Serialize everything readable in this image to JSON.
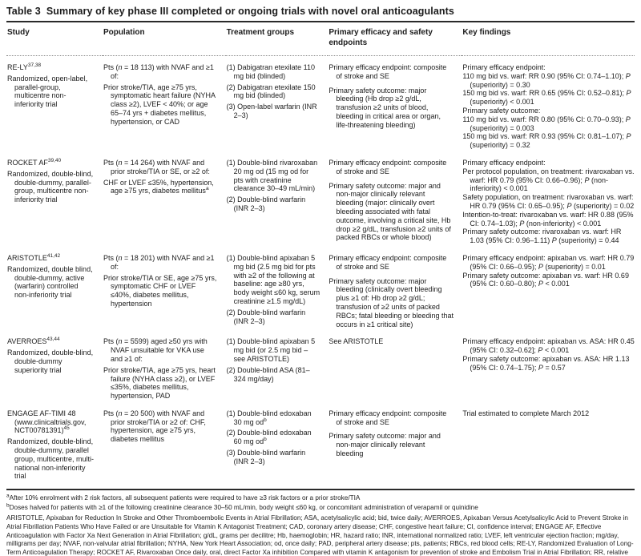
{
  "title": {
    "label": "Table 3",
    "text": "Summary of key phase III completed or ongoing trials with novel oral anticoagulants"
  },
  "table": {
    "columns": [
      "Study",
      "Population",
      "Treatment groups",
      "Primary efficacy and safety endpoints",
      "Key findings"
    ],
    "rows": [
      {
        "study": [
          {
            "text": "RE-LY",
            "sup": "37,38"
          },
          {
            "text": "Randomized, open-label, parallel-group, multicentre non-inferiority trial",
            "gap": true
          }
        ],
        "population": [
          {
            "text": "Pts (n = 18 113) with NVAF and ≥1 of:"
          },
          {
            "text": "Prior stroke/TIA, age ≥75 yrs, symptomatic heart failure (NYHA class ≥2), LVEF < 40%; or age 65–74 yrs + diabetes mellitus, hypertension, or CAD"
          }
        ],
        "treatment": [
          {
            "text": "(1) Dabigatran etexilate 110 mg bid (blinded)"
          },
          {
            "text": "(2) Dabigatran etexilate 150 mg bid (blinded)"
          },
          {
            "text": "(3) Open-label warfarin (INR 2–3)"
          }
        ],
        "endpoints": [
          {
            "text": "Primary efficacy endpoint: composite of stroke and SE"
          },
          {
            "text": "Primary safety outcome: major bleeding (Hb drop ≥2 g/dL, transfusion ≥2 units of blood, bleeding in critical area or organ, life-threatening bleeding)",
            "gap": true
          }
        ],
        "findings": [
          {
            "text": "Primary efficacy endpoint:"
          },
          {
            "text": "110 mg bid vs. warf: RR 0.90 (95% CI: 0.74–1.10); P (superiority) = 0.30"
          },
          {
            "text": "150 mg bid vs. warf: RR 0.65 (95% CI: 0.52–0.81); P (superiority) < 0.001"
          },
          {
            "text": "Primary safety outcome:"
          },
          {
            "text": "110 mg bid vs. warf: RR 0.80 (95% CI: 0.70–0.93); P (superiority) = 0.003"
          },
          {
            "text": "150 mg bid vs. warf: RR 0.93 (95% CI: 0.81–1.07); P (superiority) = 0.32"
          }
        ]
      },
      {
        "study": [
          {
            "text": "ROCKET AF",
            "sup": "39,40"
          },
          {
            "text": "Randomized, double-blind, double-dummy, parallel-group, multicentre non-inferiority trial"
          }
        ],
        "population": [
          {
            "text": "Pts (n = 14 264) with NVAF and prior stroke/TIA or SE, or ≥2 of:"
          },
          {
            "text": "CHF or LVEF ≤35%, hypertension, age ≥75 yrs, diabetes mellitus",
            "sup": "a"
          }
        ],
        "treatment": [
          {
            "text": "(1) Double-blind rivaroxaban 20 mg od (15 mg od for pts with creatinine clearance 30–49 mL/min)"
          },
          {
            "text": "(2) Double-blind warfarin (INR 2–3)"
          }
        ],
        "endpoints": [
          {
            "text": "Primary efficacy endpoint: composite of stroke and SE"
          },
          {
            "text": "Primary safety outcome: major and non-major clinically relevant bleeding (major: clinically overt bleeding associated with fatal outcome, involving a critical site, Hb drop ≥2 g/dL, transfusion ≥2 units of packed RBCs or whole blood)",
            "gap": true
          }
        ],
        "findings": [
          {
            "text": "Primary efficacy endpoint:"
          },
          {
            "text": "Per protocol population, on treatment: rivaroxaban vs. warf: HR 0.79 (95% CI: 0.66–0.96); P (non-inferiority) < 0.001"
          },
          {
            "text": "Safety population, on treatment: rivaroxaban vs. warf: HR 0.79 (95% CI: 0.65–0.95); P (superiority) = 0.02"
          },
          {
            "text": "Intention-to-treat: rivaroxaban vs. warf: HR 0.88 (95% CI: 0.74–1.03); P (non-inferiority) < 0.001"
          },
          {
            "text": "Primary safety outcome: rivaroxaban vs. warf: HR 1.03 (95% CI: 0.96–1.11) P (superiority) = 0.44"
          }
        ]
      },
      {
        "study": [
          {
            "text": "ARISTOTLE",
            "sup": "41,42"
          },
          {
            "text": "Randomized, double blind, double-dummy, active (warfarin) controlled non-inferiority trial"
          }
        ],
        "population": [
          {
            "text": "Pts (n = 18 201) with NVAF and ≥1 of:"
          },
          {
            "text": "Prior stroke/TIA or SE, age ≥75 yrs, symptomatic CHF or LVEF ≤40%, diabetes mellitus, hypertension"
          }
        ],
        "treatment": [
          {
            "text": "(1) Double-blind apixaban 5 mg bid (2.5 mg bid for pts with ≥2 of the following at baseline: age ≥80 yrs, body weight ≤60 kg, serum creatinine ≥1.5 mg/dL)"
          },
          {
            "text": "(2) Double-blind warfarin (INR 2–3)"
          }
        ],
        "endpoints": [
          {
            "text": "Primary efficacy endpoint: composite of stroke and SE"
          },
          {
            "text": "Primary safety outcome: major bleeding (clinically overt bleeding plus ≥1 of: Hb drop ≥2 g/dL; transfusion of ≥2 units of packed RBCs; fatal bleeding or bleeding that occurs in ≥1 critical site)",
            "gap": true
          }
        ],
        "findings": [
          {
            "text": "Primary efficacy endpoint: apixaban vs. warf: HR 0.79 (95% CI: 0.66–0.95); P (superiority) = 0.01"
          },
          {
            "text": "Primary safety outcome: apixaban vs. warf: HR 0.69 (95% CI: 0.60–0.80); P < 0.001"
          }
        ]
      },
      {
        "study": [
          {
            "text": "AVERROES",
            "sup": "43,44"
          },
          {
            "text": "Randomized, double-blind, double-dummy superiority trial"
          }
        ],
        "population": [
          {
            "text": "Pts (n = 5599) aged ≥50 yrs with NVAF unsuitable for VKA use and ≥1 of:"
          },
          {
            "text": "Prior stroke/TIA, age ≥75 yrs, heart failure (NYHA class ≥2), or LVEF ≤35%, diabetes mellitus, hypertension, PAD"
          }
        ],
        "treatment": [
          {
            "text": "(1) Double-blind apixaban 5 mg bid (or 2.5 mg bid – see ARISTOTLE)"
          },
          {
            "text": "(2) Double-blind ASA (81–324 mg/day)"
          }
        ],
        "endpoints": [
          {
            "text": "See ARISTOTLE"
          }
        ],
        "findings": [
          {
            "text": "Primary efficacy endpoint: apixaban vs. ASA: HR 0.45 (95% CI: 0.32–0.62]; P < 0.001"
          },
          {
            "text": "Primary safety outcome: apixaban vs. ASA: HR 1.13 (95% CI: 0.74–1.75); P = 0.57"
          }
        ]
      },
      {
        "study": [
          {
            "text": "ENGAGE AF-TIMI 48 (www.clinicaltrials.gov, NCT00781391)",
            "sup": "45"
          },
          {
            "text": "Randomized, double-blind, double-dummy, parallel group, multicentre, multi-national non-inferiority trial",
            "gap": true
          }
        ],
        "population": [
          {
            "text": "Pts (n = 20 500) with NVAF and prior stroke/TIA or ≥2 of: CHF, hypertension, age ≥75 yrs, diabetes mellitus"
          }
        ],
        "treatment": [
          {
            "text": "(1) Double-blind edoxaban 30 mg od",
            "sup": "b"
          },
          {
            "text": "(2) Double-blind edoxaban 60 mg od",
            "sup": "b"
          },
          {
            "text": "(3) Double-blind warfarin (INR 2–3)"
          }
        ],
        "endpoints": [
          {
            "text": "Primary efficacy endpoint: composite of stroke and SE"
          },
          {
            "text": "Primary safety outcome: major and non-major clinically relevant bleeding",
            "gap": true
          }
        ],
        "findings": [
          {
            "text": "Trial estimated to complete March 2012"
          }
        ]
      }
    ]
  },
  "footnotes": [
    {
      "sup": "a",
      "text": "After 10% enrolment with 2 risk factors, all subsequent patients were required to have ≥3 risk factors or a prior stroke/TIA"
    },
    {
      "sup": "b",
      "text": "Doses halved for patients with ≥1 of the following creatinine clearance 30–50 mL/min, body weight ≤60 kg, or concomitant administration of verapamil or quinidine"
    },
    {
      "abbr": true,
      "text": "ARISTOTLE, Apixaban for Reduction In Stroke and Other Thromboembolic Events in Atrial Fibrillation; ASA, acetylsalicylic acid; bid, twice daily; AVERROES, Apixaban Versus Acetylsalicylic Acid to Prevent Stroke in Atrial Fibrillation Patients Who Have Failed or are Unsuitable for Vitamin K Antagonist Treatment; CAD, coronary artery disease; CHF, congestive heart failure; CI, confidence interval; ENGAGE AF, Effective Anticoagulation with Factor Xa Next Generation in Atrial Fibrillation; g/dL, grams per decilitre; Hb, haemoglobin; HR, hazard ratio; INR, international normalized ratio; LVEF, left ventricular ejection fraction; mg/day, milligrams per day; NVAF, non-valvular atrial fibrillation; NYHA, New York Heart Association; od, once daily; PAD, peripheral artery disease; pts, patients; RBCs, red blood cells; RE-LY, Randomized Evaluation of Long-Term Anticoagulation Therapy; ROCKET AF, Rivaroxaban Once daily, oral, direct Factor Xa inhibition Compared with vitamin K antagonism for prevention of stroke and Embolism Trial in Atrial Fibrillation; RR, relative risk; SE, systemic embolism; TIA, transient ischaemic attack; VKA, vitamin K antagonist; warf, warfarin; yrs, years."
    }
  ]
}
